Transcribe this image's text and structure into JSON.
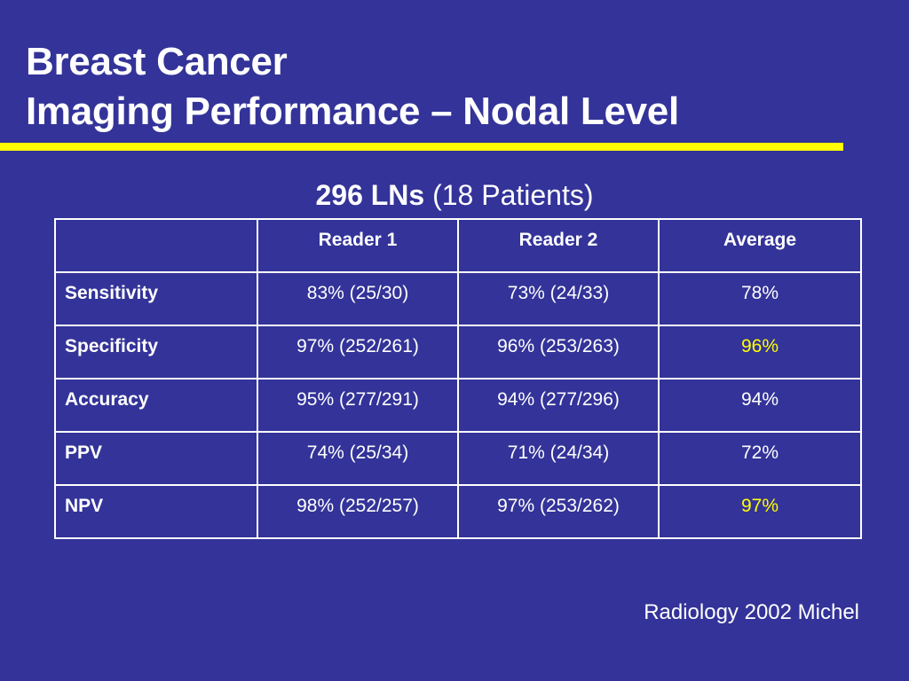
{
  "title": {
    "line1": "Breast Cancer",
    "line2": "Imaging Performance – Nodal Level"
  },
  "subtitle": {
    "bold": "296 LNs",
    "normal": "(18 Patients)"
  },
  "table": {
    "headers": [
      "",
      "Reader 1",
      "Reader 2",
      "Average"
    ],
    "rows": [
      {
        "label": "Sensitivity",
        "reader1": "83% (25/30)",
        "reader2": "73% (24/33)",
        "average": "78%"
      },
      {
        "label": "Specificity",
        "reader1": "97% (252/261)",
        "reader2": "96% (253/263)",
        "average": "96%"
      },
      {
        "label": "Accuracy",
        "reader1": "95% (277/291)",
        "reader2": "94% (277/296)",
        "average": "94%"
      },
      {
        "label": "PPV",
        "reader1": "74% (25/34)",
        "reader2": "71% (24/34)",
        "average": "72%"
      },
      {
        "label": "NPV",
        "reader1": "98% (252/257)",
        "reader2": "97% (253/262)",
        "average": "97%"
      }
    ]
  },
  "source": "Radiology 2002 Michel",
  "colors": {
    "background": "#333399",
    "accent": "#ffff00",
    "text": "#ffffff"
  }
}
